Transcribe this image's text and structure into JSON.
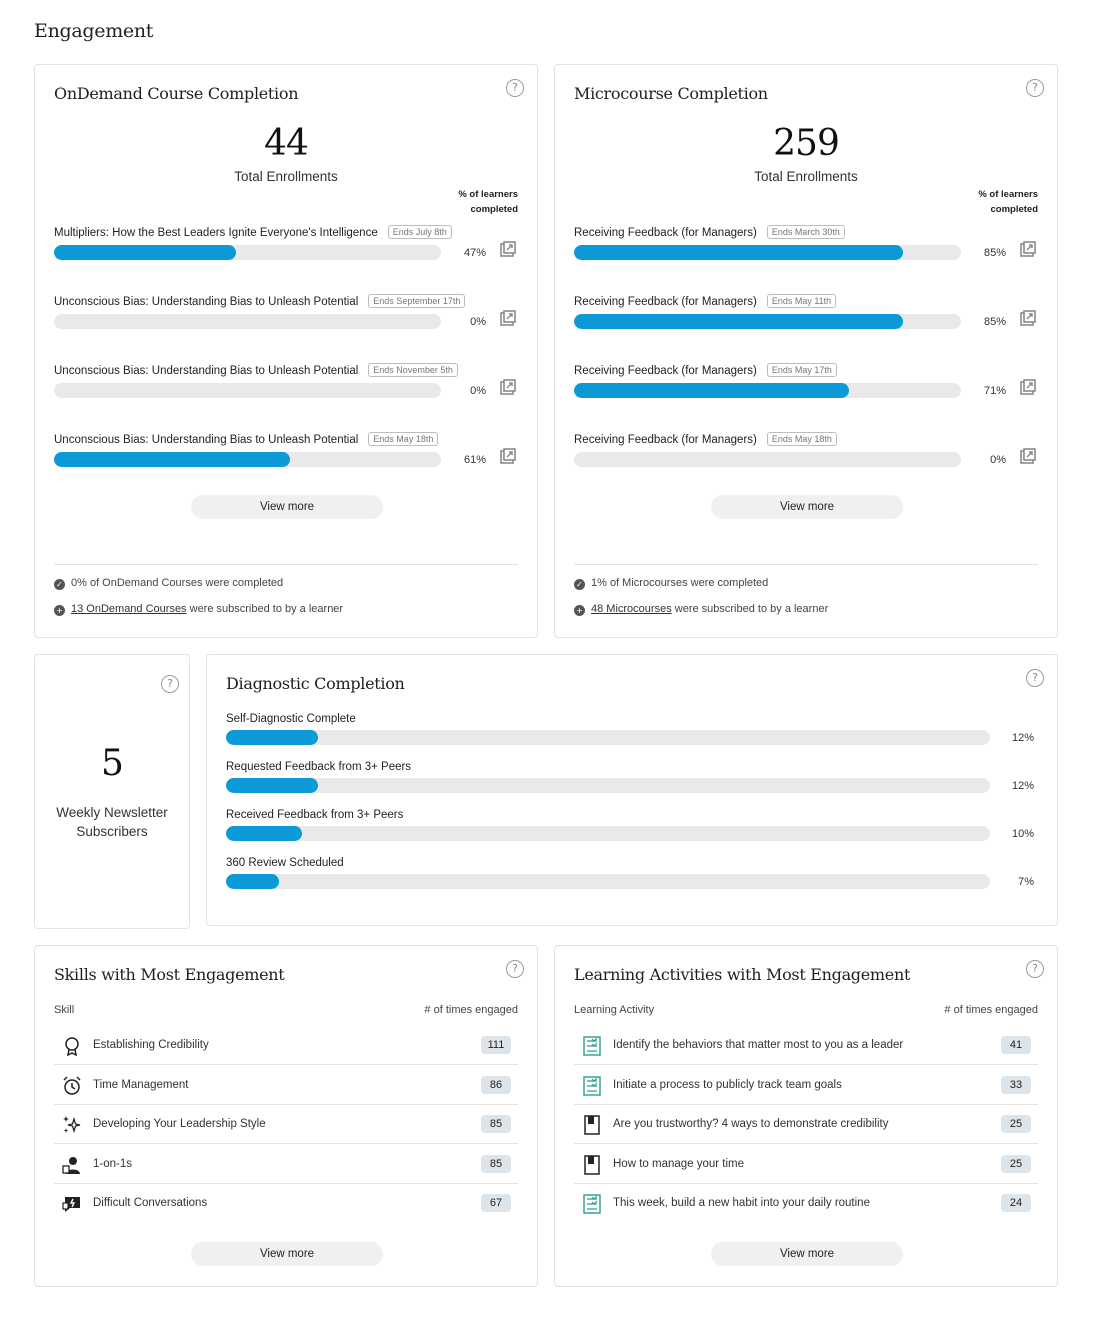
{
  "page": {
    "title": "Engagement"
  },
  "colors": {
    "accent": "#0b9ad6",
    "track": "#e9e9e9",
    "badge": "#dde4ea"
  },
  "ondemand": {
    "title": "OnDemand Course Completion",
    "total": "44",
    "total_label": "Total Enrollments",
    "col_head_1": "% of learners",
    "col_head_2": "completed",
    "courses": [
      {
        "name": "Multipliers: How the Best Leaders Ignite Everyone's Intelligence",
        "tag": "Ends July 8th",
        "pct": "47%",
        "value": 47
      },
      {
        "name": "Unconscious Bias: Understanding Bias to Unleash Potential",
        "tag": "Ends September 17th",
        "pct": "0%",
        "value": 0
      },
      {
        "name": "Unconscious Bias: Understanding Bias to Unleash Potential",
        "tag": "Ends November 5th",
        "pct": "0%",
        "value": 0
      },
      {
        "name": "Unconscious Bias: Understanding Bias to Unleash Potential",
        "tag": "Ends May 18th",
        "pct": "61%",
        "value": 61
      }
    ],
    "view_more": "View more",
    "footer_1": "0% of OnDemand Courses were completed",
    "footer_2_link": "13 OnDemand Courses",
    "footer_2_rest": " were subscribed to by a learner"
  },
  "micro": {
    "title": "Microcourse Completion",
    "total": "259",
    "total_label": "Total Enrollments",
    "col_head_1": "% of learners",
    "col_head_2": "completed",
    "courses": [
      {
        "name": "Receiving Feedback (for Managers)",
        "tag": "Ends March 30th",
        "pct": "85%",
        "value": 85
      },
      {
        "name": "Receiving Feedback (for Managers)",
        "tag": "Ends May 11th",
        "pct": "85%",
        "value": 85
      },
      {
        "name": "Receiving Feedback (for Managers)",
        "tag": "Ends May 17th",
        "pct": "71%",
        "value": 71
      },
      {
        "name": "Receiving Feedback (for Managers)",
        "tag": "Ends May 18th",
        "pct": "0%",
        "value": 0
      }
    ],
    "view_more": "View more",
    "footer_1": "1% of Microcourses were completed",
    "footer_2_link": "48 Microcourses",
    "footer_2_rest": " were subscribed to by a learner"
  },
  "newsletter": {
    "count": "5",
    "label_1": "Weekly Newsletter",
    "label_2": "Subscribers"
  },
  "diagnostic": {
    "title": "Diagnostic Completion",
    "items": [
      {
        "name": "Self-Diagnostic Complete",
        "pct": "12%",
        "value": 12
      },
      {
        "name": "Requested Feedback from 3+ Peers",
        "pct": "12%",
        "value": 12
      },
      {
        "name": "Received Feedback from 3+ Peers",
        "pct": "10%",
        "value": 10
      },
      {
        "name": "360 Review Scheduled",
        "pct": "7%",
        "value": 7
      }
    ]
  },
  "skills": {
    "title": "Skills with Most Engagement",
    "col_left": "Skill",
    "col_right": "# of times engaged",
    "rows": [
      {
        "label": "Establishing Credibility",
        "count": "111",
        "icon": "ribbon-award-icon"
      },
      {
        "label": "Time Management",
        "count": "86",
        "icon": "alarm-clock-icon"
      },
      {
        "label": "Developing Your Leadership Style",
        "count": "85",
        "icon": "sparkles-icon"
      },
      {
        "label": "1-on-1s",
        "count": "85",
        "icon": "people-icon"
      },
      {
        "label": "Difficult Conversations",
        "count": "67",
        "icon": "chat-alert-icon"
      }
    ],
    "view_more": "View more"
  },
  "activities": {
    "title": "Learning Activities with Most Engagement",
    "col_left": "Learning Activity",
    "col_right": "# of times engaged",
    "rows": [
      {
        "label": "Identify the behaviors that matter most to you as a leader",
        "count": "41",
        "icon": "checklist-icon"
      },
      {
        "label": "Initiate a process to publicly track team goals",
        "count": "33",
        "icon": "checklist-icon"
      },
      {
        "label": "Are you trustworthy? 4 ways to demonstrate credibility",
        "count": "25",
        "icon": "book-icon"
      },
      {
        "label": "How to manage your time",
        "count": "25",
        "icon": "book-icon"
      },
      {
        "label": "This week, build a new habit into your daily routine",
        "count": "24",
        "icon": "checklist-icon"
      }
    ],
    "view_more": "View more"
  }
}
